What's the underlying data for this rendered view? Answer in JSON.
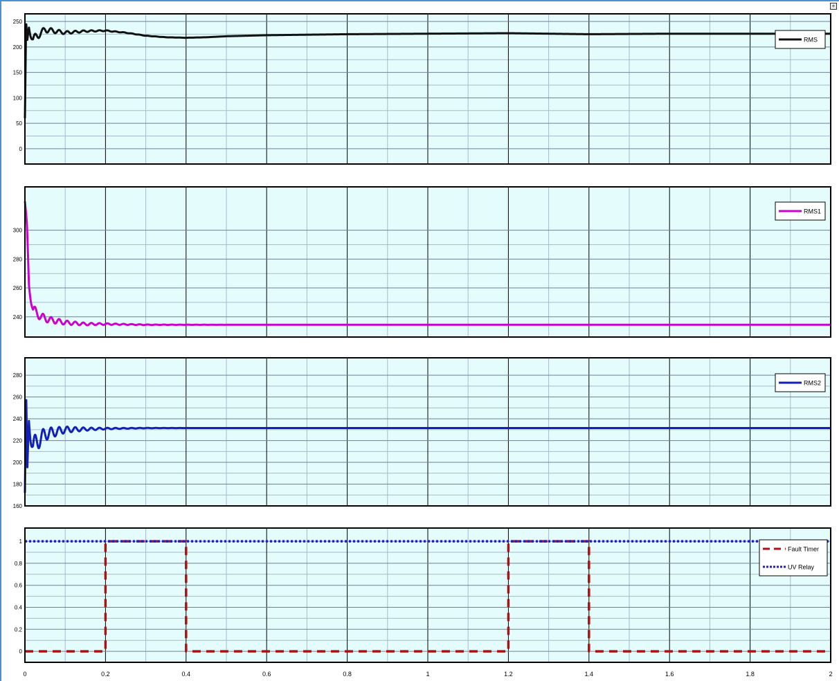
{
  "window": {
    "frame_color": "#4a90d9",
    "corner_icon": "plus-box-icon"
  },
  "style": {
    "plot_bg": "#e4fcfc",
    "grid_major": "#000000",
    "grid_light": "#a9b9cf"
  },
  "chart_data": [
    {
      "type": "line",
      "title": "",
      "xlabel": "",
      "ylabel": "",
      "xlim": [
        0,
        2
      ],
      "ylim": [
        -30,
        265
      ],
      "grid": true,
      "legend_position": "top-right",
      "x_ticks": [
        0,
        0.2,
        0.4,
        0.6,
        0.8,
        1,
        1.2,
        1.4,
        1.6,
        1.8,
        2
      ],
      "y_ticks": [
        0,
        50,
        100,
        150,
        200,
        250
      ],
      "y_tick_labels": [
        "0",
        "50",
        "100",
        "150",
        "200",
        "250"
      ],
      "series": [
        {
          "name": "RMS",
          "color": "#111111",
          "dash": "solid",
          "x": [
            0,
            0.003,
            0.006,
            0.01,
            0.02,
            0.05,
            0.1,
            0.15,
            0.2,
            0.25,
            0.3,
            0.35,
            0.4,
            0.45,
            0.5,
            0.6,
            0.8,
            1.0,
            1.2,
            1.4,
            1.6,
            1.8,
            2.0
          ],
          "y": [
            60,
            240,
            205,
            238,
            215,
            234,
            228,
            231,
            232,
            228,
            222,
            219,
            218,
            219,
            221,
            223,
            225,
            226,
            227,
            225,
            226,
            226,
            226
          ],
          "oscillation": {
            "amplitude": 10,
            "decay": 12,
            "period": 0.02
          }
        }
      ]
    },
    {
      "type": "line",
      "title": "",
      "xlabel": "",
      "ylabel": "",
      "xlim": [
        0,
        2
      ],
      "ylim": [
        226,
        330
      ],
      "grid": true,
      "legend_position": "top-right",
      "x_ticks": [
        0,
        0.2,
        0.4,
        0.6,
        0.8,
        1,
        1.2,
        1.4,
        1.6,
        1.8,
        2
      ],
      "y_ticks": [
        240,
        260,
        280,
        300
      ],
      "y_tick_labels": [
        "240",
        "260",
        "280",
        "300"
      ],
      "series": [
        {
          "name": "RMS1",
          "color": "#cc00cc",
          "dash": "solid",
          "x": [
            0,
            0.005,
            0.01,
            0.02,
            0.04,
            0.06,
            0.08,
            0.1,
            0.15,
            0.2,
            0.3,
            0.5,
            1.0,
            1.5,
            2.0
          ],
          "y": [
            320,
            300,
            262,
            245,
            240,
            238,
            237,
            236,
            235,
            235,
            234.5,
            234.5,
            234.5,
            234.5,
            234.5
          ],
          "oscillation": {
            "amplitude": 4,
            "decay": 10,
            "period": 0.02
          }
        }
      ]
    },
    {
      "type": "line",
      "title": "",
      "xlabel": "",
      "ylabel": "",
      "xlim": [
        0,
        2
      ],
      "ylim": [
        160,
        296
      ],
      "grid": true,
      "legend_position": "top-right",
      "x_ticks": [
        0,
        0.2,
        0.4,
        0.6,
        0.8,
        1,
        1.2,
        1.4,
        1.6,
        1.8,
        2
      ],
      "y_ticks": [
        160,
        180,
        200,
        220,
        240,
        260,
        280
      ],
      "y_tick_labels": [
        "160",
        "180",
        "200",
        "220",
        "240",
        "260",
        "280"
      ],
      "series": [
        {
          "name": "RMS2",
          "color": "#1020b8",
          "dash": "solid",
          "x": [
            0,
            0.003,
            0.006,
            0.01,
            0.02,
            0.05,
            0.1,
            0.2,
            0.3,
            0.5,
            1.0,
            1.5,
            2.0
          ],
          "y": [
            172,
            255,
            185,
            238,
            215,
            226,
            230,
            231,
            231.5,
            231.5,
            231.5,
            231.5,
            231.5
          ],
          "oscillation": {
            "amplitude": 12,
            "decay": 14,
            "period": 0.02
          }
        }
      ]
    },
    {
      "type": "line",
      "title": "",
      "xlabel": "",
      "ylabel": "",
      "xlim": [
        0,
        2
      ],
      "ylim": [
        -0.1,
        1.12
      ],
      "grid": true,
      "legend_position": "top-right",
      "x_ticks": [
        0,
        0.2,
        0.4,
        0.6,
        0.8,
        1,
        1.2,
        1.4,
        1.6,
        1.8,
        2
      ],
      "x_tick_labels": [
        "0",
        "0.2",
        "0.4",
        "0.6",
        "0.8",
        "1",
        "1.2",
        "1.4",
        "1.6",
        "1.8",
        "2"
      ],
      "y_ticks": [
        0,
        0.2,
        0.4,
        0.6,
        0.8,
        1
      ],
      "y_tick_labels": [
        "0",
        "0.2",
        "0.4",
        "0.6",
        "0.8",
        "1"
      ],
      "series": [
        {
          "name": "Fault Timer",
          "color": "#b01010",
          "dash": "dashed",
          "x": [
            0,
            0.2,
            0.2,
            0.4,
            0.4,
            1.2,
            1.2,
            1.4,
            1.4,
            2.0
          ],
          "y": [
            0,
            0,
            1,
            1,
            0,
            0,
            1,
            1,
            0,
            0
          ]
        },
        {
          "name": "UV Relay",
          "color": "#2020c0",
          "dash": "dotted",
          "x": [
            0,
            2.0
          ],
          "y": [
            1,
            1
          ]
        }
      ]
    }
  ]
}
